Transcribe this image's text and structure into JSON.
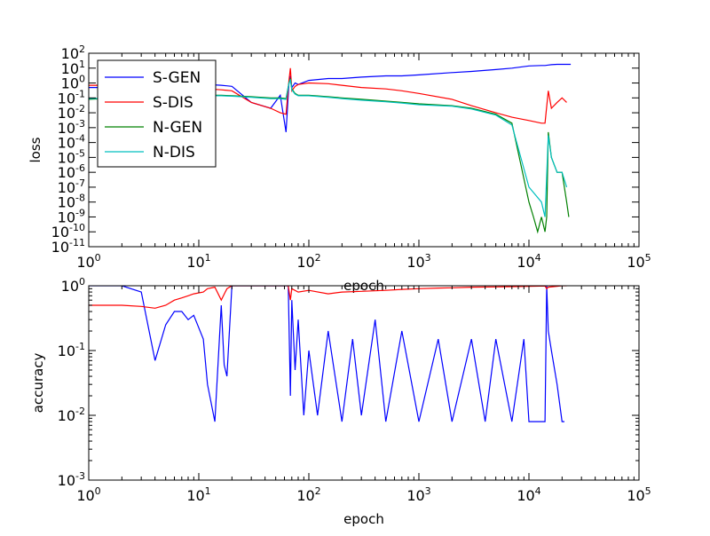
{
  "chart_data": [
    {
      "type": "line",
      "xlabel": "epoch",
      "ylabel": "loss",
      "xscale": "log",
      "yscale": "log",
      "xlim": [
        1,
        100000
      ],
      "ylim": [
        1e-11,
        100
      ],
      "x_ticks": [
        {
          "base": "10",
          "exp": "0"
        },
        {
          "base": "10",
          "exp": "1"
        },
        {
          "base": "10",
          "exp": "2"
        },
        {
          "base": "10",
          "exp": "3"
        },
        {
          "base": "10",
          "exp": "4"
        },
        {
          "base": "10",
          "exp": "5"
        }
      ],
      "y_ticks": [
        {
          "base": "10",
          "exp": "-11"
        },
        {
          "base": "10",
          "exp": "-10"
        },
        {
          "base": "10",
          "exp": "-9"
        },
        {
          "base": "10",
          "exp": "-8"
        },
        {
          "base": "10",
          "exp": "-7"
        },
        {
          "base": "10",
          "exp": "-6"
        },
        {
          "base": "10",
          "exp": "-5"
        },
        {
          "base": "10",
          "exp": "-4"
        },
        {
          "base": "10",
          "exp": "-3"
        },
        {
          "base": "10",
          "exp": "-2"
        },
        {
          "base": "10",
          "exp": "-1"
        },
        {
          "base": "10",
          "exp": "0"
        },
        {
          "base": "10",
          "exp": "1"
        },
        {
          "base": "10",
          "exp": "2"
        }
      ],
      "legend": {
        "position": "upper-left"
      },
      "series": [
        {
          "name": "S-GEN",
          "color": "#0000ff",
          "x": [
            1,
            2,
            3,
            5,
            8,
            12,
            16,
            20,
            30,
            45,
            55,
            62,
            66,
            68,
            70,
            75,
            80,
            100,
            150,
            200,
            300,
            500,
            700,
            1000,
            2000,
            3000,
            5000,
            7000,
            10000,
            13000,
            14000,
            15000,
            16000,
            18000,
            20000,
            24000
          ],
          "y": [
            0.5,
            0.5,
            0.5,
            0.6,
            1.2,
            0.8,
            0.7,
            0.6,
            0.05,
            0.02,
            0.15,
            0.0005,
            1.0,
            3.0,
            0.5,
            1.0,
            0.8,
            1.5,
            2.0,
            2.0,
            2.5,
            3.0,
            3.0,
            3.5,
            5.0,
            6.0,
            8.0,
            10.0,
            14.0,
            15.0,
            15.0,
            16.0,
            17.0,
            18.0,
            18.0,
            18.0
          ]
        },
        {
          "name": "S-DIS",
          "color": "#ff0000",
          "x": [
            1,
            2,
            3,
            5,
            8,
            12,
            16,
            20,
            30,
            45,
            55,
            62,
            66,
            68,
            70,
            75,
            80,
            100,
            150,
            200,
            300,
            500,
            700,
            1000,
            2000,
            3000,
            5000,
            7000,
            10000,
            13000,
            14000,
            15000,
            16000,
            18000,
            20000,
            22000
          ],
          "y": [
            0.7,
            0.7,
            0.7,
            0.6,
            0.5,
            0.4,
            0.35,
            0.3,
            0.05,
            0.02,
            0.01,
            0.008,
            1.5,
            10.0,
            0.3,
            0.6,
            0.8,
            1.0,
            0.9,
            0.7,
            0.5,
            0.4,
            0.3,
            0.2,
            0.08,
            0.03,
            0.01,
            0.005,
            0.003,
            0.002,
            0.002,
            0.3,
            0.02,
            0.05,
            0.1,
            0.05
          ]
        },
        {
          "name": "N-GEN",
          "color": "#008000",
          "x": [
            1,
            2,
            3,
            5,
            8,
            12,
            16,
            20,
            30,
            45,
            55,
            62,
            66,
            68,
            70,
            75,
            80,
            100,
            150,
            200,
            300,
            500,
            700,
            1000,
            2000,
            3000,
            5000,
            7000,
            10000,
            11000,
            12000,
            13000,
            14000,
            14500,
            15000,
            16000,
            18000,
            20000,
            22000,
            23000
          ],
          "y": [
            0.08,
            0.1,
            0.12,
            0.12,
            0.13,
            0.15,
            0.15,
            0.14,
            0.12,
            0.1,
            0.1,
            0.09,
            1.0,
            2.0,
            0.4,
            0.2,
            0.15,
            0.15,
            0.12,
            0.1,
            0.08,
            0.06,
            0.05,
            0.04,
            0.03,
            0.02,
            0.008,
            0.002,
            1e-08,
            1e-09,
            1e-10,
            1e-09,
            1e-10,
            1e-09,
            0.0005,
            1e-05,
            1e-06,
            1e-06,
            1e-08,
            1e-09
          ]
        },
        {
          "name": "N-DIS",
          "color": "#00bfbf",
          "x": [
            1,
            2,
            3,
            5,
            8,
            12,
            16,
            20,
            30,
            45,
            55,
            62,
            66,
            68,
            70,
            75,
            80,
            100,
            150,
            200,
            300,
            500,
            700,
            1000,
            2000,
            3000,
            5000,
            7000,
            10000,
            13000,
            14000,
            15000,
            16000,
            18000,
            20000,
            22000
          ],
          "y": [
            0.09,
            0.1,
            0.11,
            0.11,
            0.12,
            0.14,
            0.14,
            0.13,
            0.11,
            0.09,
            0.09,
            0.08,
            0.9,
            1.8,
            0.35,
            0.18,
            0.14,
            0.14,
            0.11,
            0.09,
            0.07,
            0.055,
            0.045,
            0.035,
            0.028,
            0.018,
            0.007,
            0.0015,
            1e-07,
            1e-08,
            1e-09,
            0.0003,
            1e-05,
            1e-06,
            1e-06,
            1e-07
          ]
        }
      ]
    },
    {
      "type": "line",
      "xlabel": "epoch",
      "ylabel": "accuracy",
      "xscale": "log",
      "yscale": "log",
      "xlim": [
        1,
        100000
      ],
      "ylim": [
        0.001,
        1
      ],
      "x_ticks": [
        {
          "base": "10",
          "exp": "0"
        },
        {
          "base": "10",
          "exp": "1"
        },
        {
          "base": "10",
          "exp": "2"
        },
        {
          "base": "10",
          "exp": "3"
        },
        {
          "base": "10",
          "exp": "4"
        },
        {
          "base": "10",
          "exp": "5"
        }
      ],
      "y_ticks": [
        {
          "base": "10",
          "exp": "-3"
        },
        {
          "base": "10",
          "exp": "-2"
        },
        {
          "base": "10",
          "exp": "-1"
        },
        {
          "base": "10",
          "exp": "0"
        }
      ],
      "series": [
        {
          "color": "#0000ff",
          "x": [
            1,
            2,
            3,
            4,
            5,
            6,
            7,
            8,
            9,
            11,
            12,
            14,
            16,
            17,
            18,
            20,
            30,
            50,
            60,
            65,
            68,
            70,
            75,
            80,
            90,
            100,
            120,
            150,
            200,
            250,
            300,
            400,
            500,
            700,
            1000,
            1500,
            2000,
            3000,
            4000,
            5000,
            7000,
            9000,
            10000,
            10500,
            12000,
            14000,
            14500,
            15000,
            16000,
            18000,
            20000,
            21000
          ],
          "y": [
            1,
            1,
            0.8,
            0.07,
            0.25,
            0.4,
            0.4,
            0.3,
            0.35,
            0.15,
            0.03,
            0.008,
            0.5,
            0.06,
            0.04,
            1,
            1,
            1,
            1,
            1,
            0.02,
            0.6,
            0.05,
            0.3,
            0.01,
            0.1,
            0.01,
            0.2,
            0.008,
            0.15,
            0.01,
            0.3,
            0.008,
            0.2,
            0.008,
            0.15,
            0.008,
            0.15,
            0.008,
            0.15,
            0.008,
            0.15,
            0.008,
            0.008,
            0.008,
            0.008,
            1,
            0.2,
            0.1,
            0.03,
            0.008,
            0.008
          ]
        },
        {
          "color": "#ff0000",
          "x": [
            1,
            2,
            3,
            4,
            5,
            6,
            7,
            8,
            9,
            11,
            12,
            14,
            16,
            18,
            20,
            30,
            50,
            60,
            65,
            68,
            70,
            80,
            100,
            150,
            200,
            300,
            500,
            700,
            1000,
            1500,
            2000,
            3000,
            5000,
            7000,
            10000,
            14000,
            14500,
            15000,
            20000,
            22000
          ],
          "y": [
            0.5,
            0.5,
            0.48,
            0.45,
            0.5,
            0.6,
            0.65,
            0.7,
            0.75,
            0.8,
            0.9,
            0.95,
            0.6,
            0.9,
            1,
            1,
            1,
            1,
            1,
            0.6,
            0.9,
            0.8,
            0.85,
            0.75,
            0.8,
            0.82,
            0.85,
            0.88,
            0.9,
            0.92,
            0.93,
            0.95,
            0.96,
            0.97,
            0.98,
            0.99,
            0.9,
            0.95,
            1,
            1
          ]
        }
      ]
    }
  ]
}
